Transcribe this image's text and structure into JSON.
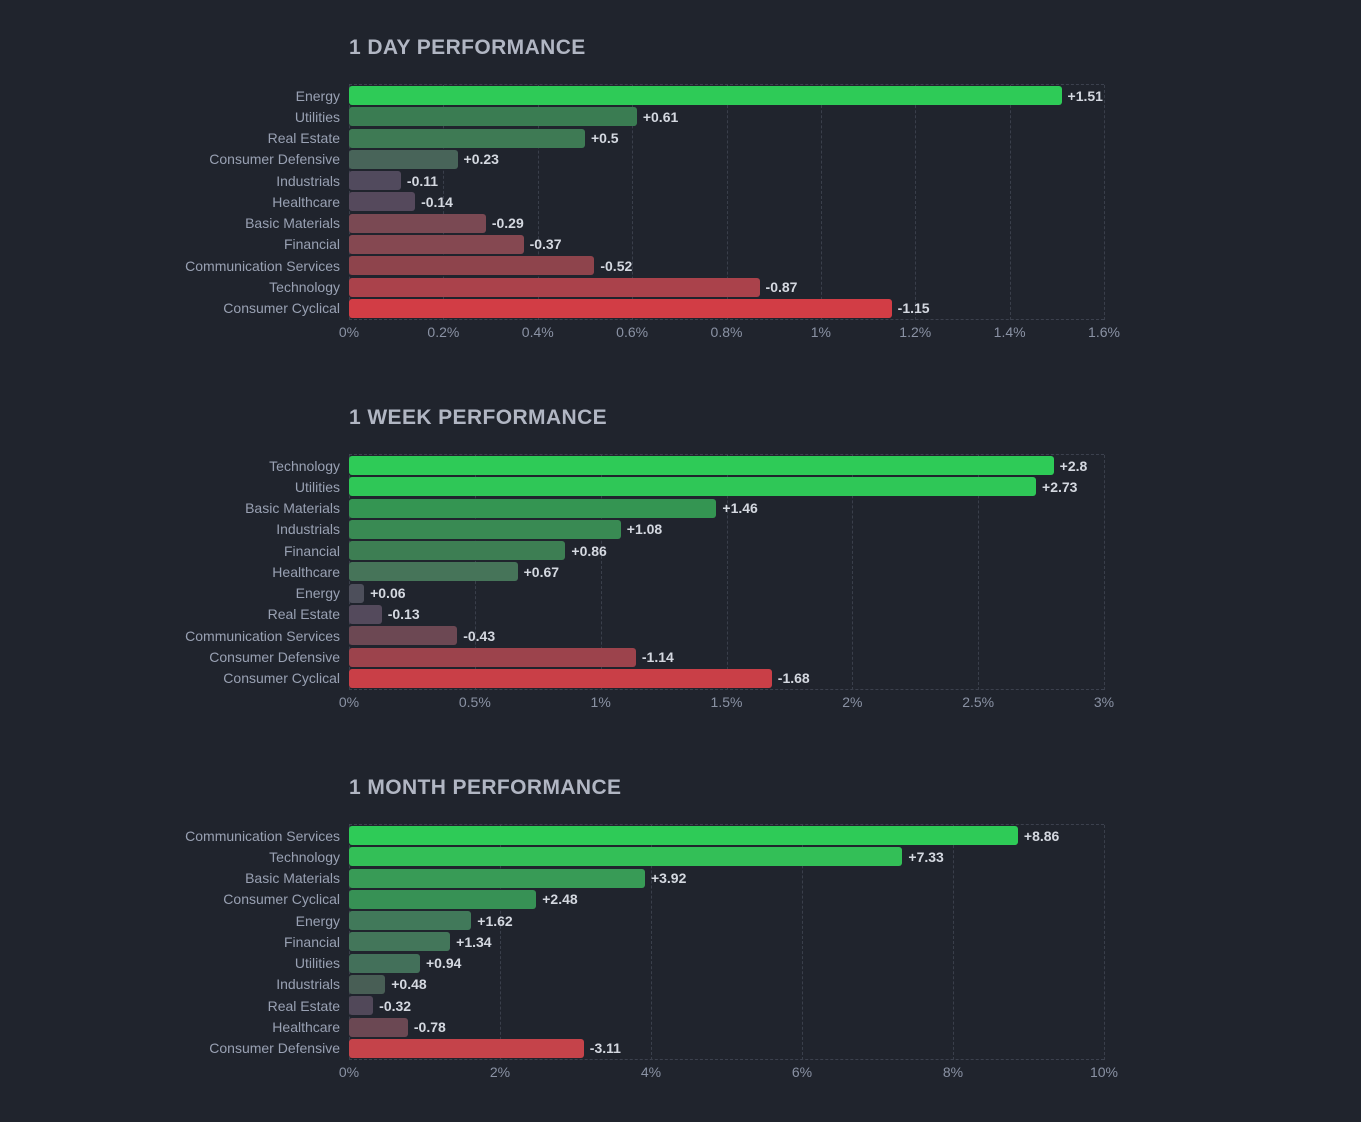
{
  "page": {
    "background_color": "#20242d"
  },
  "style": {
    "positive_strong_color": "#2ecb57",
    "neutral_color": "#52495c",
    "negative_strong_color": "#d23d45",
    "grid_color": "#3a3f4b",
    "title_color": "#b1b6c3",
    "sector_label_color": "#99a1b3",
    "value_label_color": "#d4d8e0",
    "axis_label_color": "#8a92a4"
  },
  "chart_data": [
    {
      "type": "bar",
      "orientation": "horizontal",
      "title": "1 DAY PERFORMANCE",
      "categories": [
        "Energy",
        "Utilities",
        "Real Estate",
        "Consumer Defensive",
        "Industrials",
        "Healthcare",
        "Basic Materials",
        "Financial",
        "Communication Services",
        "Technology",
        "Consumer Cyclical"
      ],
      "values": [
        1.51,
        0.61,
        0.5,
        0.23,
        -0.11,
        -0.14,
        -0.29,
        -0.37,
        -0.52,
        -0.87,
        -1.15
      ],
      "value_labels": [
        "+1.51",
        "+0.61",
        "+0.5",
        "+0.23",
        "-0.11",
        "-0.14",
        "-0.29",
        "-0.37",
        "-0.52",
        "-0.87",
        "-1.15"
      ],
      "bar_colors": [
        "#2ecb57",
        "#3a7c52",
        "#3e7a54",
        "#486459",
        "#514a5d",
        "#55495c",
        "#7a4953",
        "#854851",
        "#8e444c",
        "#aa424b",
        "#d23d45"
      ],
      "tick_labels": [
        "0%",
        "0.2%",
        "0.4%",
        "0.6%",
        "0.8%",
        "1%",
        "1.2%",
        "1.4%",
        "1.6%"
      ],
      "tick_values": [
        0,
        0.2,
        0.4,
        0.6,
        0.8,
        1,
        1.2,
        1.4,
        1.6
      ],
      "xlim": [
        0,
        1.6
      ],
      "grid": "dashed-vertical",
      "legend": "none",
      "encoding_note": "bar length = |value| in %, sign encoded by green-to-red color"
    },
    {
      "type": "bar",
      "orientation": "horizontal",
      "title": "1 WEEK PERFORMANCE",
      "categories": [
        "Technology",
        "Utilities",
        "Basic Materials",
        "Industrials",
        "Financial",
        "Healthcare",
        "Energy",
        "Real Estate",
        "Communication Services",
        "Consumer Defensive",
        "Consumer Cyclical"
      ],
      "values": [
        2.8,
        2.73,
        1.46,
        1.08,
        0.86,
        0.67,
        0.06,
        -0.13,
        -0.43,
        -1.14,
        -1.68
      ],
      "value_labels": [
        "+2.8",
        "+2.73",
        "+1.46",
        "+1.08",
        "+0.86",
        "+0.67",
        "+0.06",
        "-0.13",
        "-0.43",
        "-1.14",
        "-1.68"
      ],
      "bar_colors": [
        "#2ecb57",
        "#2fc757",
        "#349552",
        "#398a53",
        "#3d7e53",
        "#467459",
        "#4d4f5b",
        "#544a5c",
        "#6c4853",
        "#9c434c",
        "#c93f47"
      ],
      "tick_labels": [
        "0%",
        "0.5%",
        "1%",
        "1.5%",
        "2%",
        "2.5%",
        "3%"
      ],
      "tick_values": [
        0,
        0.5,
        1,
        1.5,
        2,
        2.5,
        3
      ],
      "xlim": [
        0,
        3
      ],
      "grid": "dashed-vertical",
      "legend": "none",
      "encoding_note": "bar length = |value| in %, sign encoded by green-to-red color"
    },
    {
      "type": "bar",
      "orientation": "horizontal",
      "title": "1 MONTH PERFORMANCE",
      "categories": [
        "Communication Services",
        "Technology",
        "Basic Materials",
        "Consumer Cyclical",
        "Energy",
        "Financial",
        "Utilities",
        "Industrials",
        "Real Estate",
        "Healthcare",
        "Consumer Defensive"
      ],
      "values": [
        8.86,
        7.33,
        3.92,
        2.48,
        1.62,
        1.34,
        0.94,
        0.48,
        -0.32,
        -0.78,
        -3.11
      ],
      "value_labels": [
        "+8.86",
        "+7.33",
        "+3.92",
        "+2.48",
        "+1.62",
        "+1.34",
        "+0.94",
        "+0.48",
        "-0.32",
        "-0.78",
        "-3.11"
      ],
      "bar_colors": [
        "#2ecb57",
        "#33bf57",
        "#389b56",
        "#379155",
        "#41795a",
        "#43765a",
        "#43705a",
        "#485e55",
        "#514859",
        "#6b4853",
        "#c5434a"
      ],
      "tick_labels": [
        "0%",
        "2%",
        "4%",
        "6%",
        "8%",
        "10%"
      ],
      "tick_values": [
        0,
        2,
        4,
        6,
        8,
        10
      ],
      "xlim": [
        0,
        10
      ],
      "grid": "dashed-vertical",
      "legend": "none",
      "encoding_note": "bar length = |value| in %, sign encoded by green-to-red color"
    }
  ]
}
